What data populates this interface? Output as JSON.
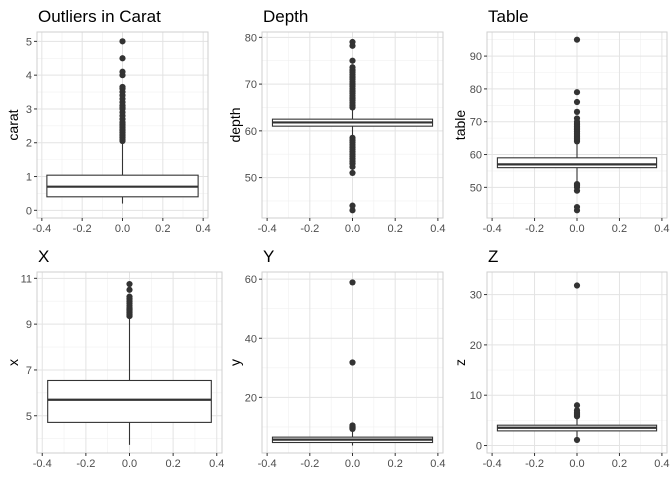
{
  "figure": {
    "grid": true,
    "theme": "light-gray-grid"
  },
  "colors": {
    "background": "#ffffff",
    "panel_border": "#cfcfcf",
    "grid_major": "#e3e3e3",
    "grid_minor": "#f0f0f0",
    "box_line": "#333333",
    "outlier": "#333333",
    "text": "#000000",
    "tick_text": "#4d4d4d"
  },
  "chart_data": [
    {
      "type": "boxplot",
      "title": "Outliers in Carat",
      "xlabel": "",
      "ylabel": "carat",
      "xlim": [
        -0.4,
        0.4
      ],
      "ylim": [
        0,
        5.05
      ],
      "xticks": [
        -0.4,
        -0.2,
        0.0,
        0.2,
        0.4
      ],
      "xtick_labels": [
        "-0.4",
        "-0.2",
        "0.0",
        "0.2",
        "0.4"
      ],
      "yticks": [
        0,
        1,
        2,
        3,
        4,
        5
      ],
      "ytick_labels": [
        "0",
        "1",
        "2",
        "3",
        "4",
        "5"
      ],
      "box": {
        "center": 0,
        "half_width": 0.375,
        "min": 0.2,
        "q1": 0.4,
        "median": 0.7,
        "q3": 1.04,
        "max": 2.0
      },
      "outliers": [
        2.05,
        2.1,
        2.15,
        2.2,
        2.25,
        2.3,
        2.35,
        2.4,
        2.45,
        2.5,
        2.55,
        2.6,
        2.7,
        2.8,
        2.9,
        3.0,
        3.05,
        3.1,
        3.2,
        3.3,
        3.4,
        3.5,
        3.6,
        3.65,
        4.0,
        4.1,
        4.5,
        5.0
      ]
    },
    {
      "type": "boxplot",
      "title": "Depth",
      "xlabel": "",
      "ylabel": "depth",
      "xlim": [
        -0.4,
        0.4
      ],
      "ylim": [
        43,
        79.5
      ],
      "xticks": [
        -0.4,
        -0.2,
        0.0,
        0.2,
        0.4
      ],
      "xtick_labels": [
        "-0.4",
        "-0.2",
        "0.0",
        "0.2",
        "0.4"
      ],
      "yticks": [
        50,
        60,
        70,
        80
      ],
      "ytick_labels": [
        "50",
        "60",
        "70",
        "80"
      ],
      "box": {
        "center": 0,
        "half_width": 0.375,
        "min": 58.8,
        "q1": 61.0,
        "median": 61.8,
        "q3": 62.5,
        "max": 64.7
      },
      "outliers": [
        43,
        44,
        51,
        52.3,
        53,
        53.5,
        54,
        54.5,
        55,
        55.5,
        56,
        56.5,
        57,
        57.5,
        58,
        58.5,
        65,
        65.5,
        66,
        66.5,
        67,
        67.5,
        68,
        68.5,
        69,
        69.5,
        70,
        70.5,
        71,
        71.5,
        72,
        72.5,
        73,
        73.6,
        75,
        78.2,
        79
      ]
    },
    {
      "type": "boxplot",
      "title": "Table",
      "xlabel": "",
      "ylabel": "table",
      "xlim": [
        -0.4,
        0.4
      ],
      "ylim": [
        43,
        95
      ],
      "xticks": [
        -0.4,
        -0.2,
        0.0,
        0.2,
        0.4
      ],
      "xtick_labels": [
        "-0.4",
        "-0.2",
        "0.0",
        "0.2",
        "0.4"
      ],
      "yticks": [
        50,
        60,
        70,
        80,
        90
      ],
      "ytick_labels": [
        "50",
        "60",
        "70",
        "80",
        "90"
      ],
      "box": {
        "center": 0,
        "half_width": 0.375,
        "min": 51.6,
        "q1": 56,
        "median": 57,
        "q3": 59,
        "max": 63.5
      },
      "outliers": [
        43,
        44,
        49,
        50,
        50.5,
        51,
        64,
        64.5,
        65,
        65.5,
        66,
        66.5,
        67,
        67.5,
        68,
        68.5,
        69,
        69.5,
        70,
        71,
        73,
        76,
        79,
        95
      ]
    },
    {
      "type": "boxplot",
      "title": "X",
      "xlabel": "",
      "ylabel": "x",
      "xlim": [
        -0.4,
        0.4
      ],
      "ylim": [
        3.7,
        10.95
      ],
      "xticks": [
        -0.4,
        -0.2,
        0.0,
        0.2,
        0.4
      ],
      "xtick_labels": [
        "-0.4",
        "-0.2",
        "0.0",
        "0.2",
        "0.4"
      ],
      "yticks": [
        5,
        7,
        9,
        11
      ],
      "ytick_labels": [
        "5",
        "7",
        "9",
        "11"
      ],
      "box": {
        "center": 0,
        "half_width": 0.375,
        "min": 3.73,
        "q1": 4.71,
        "median": 5.7,
        "q3": 6.54,
        "max": 9.3
      },
      "outliers": [
        9.35,
        9.4,
        9.45,
        9.5,
        9.55,
        9.6,
        9.65,
        9.7,
        9.8,
        9.9,
        10.0,
        10.1,
        10.2,
        10.5,
        10.75
      ]
    },
    {
      "type": "boxplot",
      "title": "Y",
      "xlabel": "",
      "ylabel": "y",
      "xlim": [
        -0.4,
        0.4
      ],
      "ylim": [
        3.7,
        59.9
      ],
      "xticks": [
        -0.4,
        -0.2,
        0.0,
        0.2,
        0.4
      ],
      "xtick_labels": [
        "-0.4",
        "-0.2",
        "0.0",
        "0.2",
        "0.4"
      ],
      "yticks": [
        20,
        40,
        60
      ],
      "ytick_labels": [
        "20",
        "40",
        "60"
      ],
      "box": {
        "center": 0,
        "half_width": 0.375,
        "min": 3.7,
        "q1": 4.72,
        "median": 5.71,
        "q3": 6.54,
        "max": 9.2
      },
      "outliers": [
        9.3,
        9.5,
        9.7,
        9.9,
        10.1,
        10.5,
        31.8,
        58.9
      ]
    },
    {
      "type": "boxplot",
      "title": "Z",
      "xlabel": "",
      "ylabel": "z",
      "xlim": [
        -0.4,
        0.4
      ],
      "ylim": [
        0,
        33
      ],
      "xticks": [
        -0.4,
        -0.2,
        0.0,
        0.2,
        0.4
      ],
      "xtick_labels": [
        "-0.4",
        "-0.2",
        "0.0",
        "0.2",
        "0.4"
      ],
      "yticks": [
        0,
        10,
        20,
        30
      ],
      "ytick_labels": [
        "0",
        "10",
        "20",
        "30"
      ],
      "box": {
        "center": 0,
        "half_width": 0.375,
        "min": 1.5,
        "q1": 2.91,
        "median": 3.53,
        "q3": 4.04,
        "max": 5.7
      },
      "outliers": [
        1.1,
        5.8,
        6.0,
        6.2,
        6.4,
        6.6,
        7.0,
        8.0,
        31.8
      ]
    }
  ]
}
